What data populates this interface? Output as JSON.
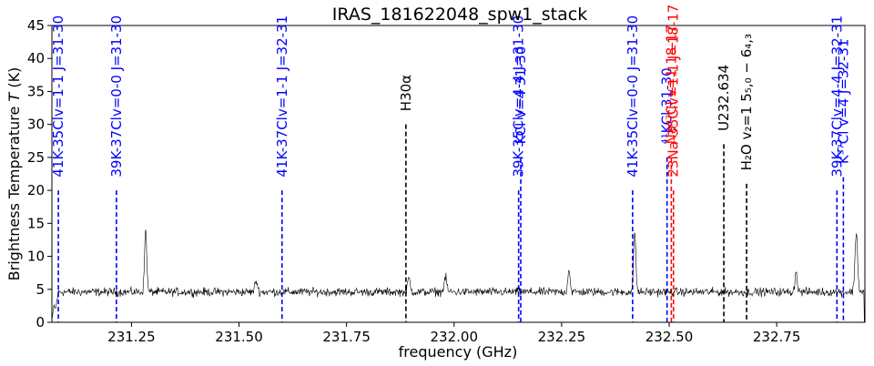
{
  "chart_data": {
    "type": "line",
    "title": "IRAS_181622048_spw1_stack",
    "xlabel": "frequency (GHz)",
    "ylabel": "Brightness Temperature",
    "ylabel_symbol": "T",
    "ylabel_unit": "(K)",
    "xlim": [
      231.065,
      232.955
    ],
    "ylim": [
      0,
      45
    ],
    "x_ticks": [
      231.25,
      231.5,
      231.75,
      232.0,
      232.25,
      232.5,
      232.75
    ],
    "x_tick_labels": [
      "231.25",
      "231.50",
      "231.75",
      "232.00",
      "232.25",
      "232.50",
      "232.75"
    ],
    "y_ticks": [
      0,
      5,
      10,
      15,
      20,
      25,
      30,
      35,
      40,
      45
    ],
    "y_tick_labels": [
      "0",
      "5",
      "10",
      "15",
      "20",
      "25",
      "30",
      "35",
      "40",
      "45"
    ],
    "grid": false,
    "baseline": 4.6,
    "noise": 0.45,
    "spectral_features": [
      {
        "freq": 231.073,
        "peak": 2.0,
        "width": 0.003
      },
      {
        "freq": 231.283,
        "peak": 14.3,
        "width": 0.0025
      },
      {
        "freq": 231.54,
        "peak": 6.3,
        "width": 0.003
      },
      {
        "freq": 231.895,
        "peak": 6.7,
        "width": 0.003
      },
      {
        "freq": 231.98,
        "peak": 6.8,
        "width": 0.003
      },
      {
        "freq": 232.267,
        "peak": 8.2,
        "width": 0.0025
      },
      {
        "freq": 232.42,
        "peak": 14.0,
        "width": 0.0025
      },
      {
        "freq": 232.795,
        "peak": 7.8,
        "width": 0.0025
      },
      {
        "freq": 232.935,
        "peak": 13.6,
        "width": 0.003
      }
    ],
    "line_markers": [
      {
        "freq": 231.08,
        "label": "41K-35Clv=1-1 J=31-30",
        "color": "#0000ff",
        "y_top": 20,
        "label_y": 22
      },
      {
        "freq": 231.215,
        "label": "39K-37Clv=0-0 J=31-30",
        "color": "#0000ff",
        "y_top": 20,
        "label_y": 22
      },
      {
        "freq": 231.6,
        "label": "41K-37Clv=1-1 J=32-31",
        "color": "#0000ff",
        "y_top": 20,
        "label_y": 22
      },
      {
        "freq": 231.888,
        "label": "H30α",
        "color": "#000000",
        "y_top": 30,
        "label_y": 32
      },
      {
        "freq": 232.15,
        "label": "39K-35Clv=4-4 J=31-30",
        "color": "#0000ff",
        "y_top": 20,
        "label_y": 22
      },
      {
        "freq": 232.155,
        "label": "KCl v=4 31-30",
        "color": "#0000ff",
        "y_top": 25,
        "label_y": 27
      },
      {
        "freq": 232.415,
        "label": "41K-35Clv=0-0 J=31-30",
        "color": "#0000ff",
        "y_top": 20,
        "label_y": 22
      },
      {
        "freq": 232.495,
        "label": "⁴¹KCl 31-30",
        "color": "#0000ff",
        "y_top": 25,
        "label_y": 27
      },
      {
        "freq": 232.505,
        "label": "Na³⁷Cl v=1 18-17",
        "color": "#ff0000",
        "y_top": 25,
        "label_y": 27
      },
      {
        "freq": 232.51,
        "label": "23Na-35Clv=1-1 J=18-17",
        "color": "#ff0000",
        "y_top": 20,
        "label_y": 22
      },
      {
        "freq": 232.627,
        "label": "U232.634",
        "color": "#000000",
        "y_top": 27,
        "label_y": 29
      },
      {
        "freq": 232.68,
        "label": "H₂O v₂=1 5₅,₀ − 6₄,₃",
        "color": "#000000",
        "y_top": 21,
        "label_y": 23
      },
      {
        "freq": 232.89,
        "label": "39K-37Clv=4-4 J=32-31",
        "color": "#0000ff",
        "y_top": 20,
        "label_y": 22
      },
      {
        "freq": 232.905,
        "label": "K³⁷Cl v=4 J=32-31",
        "color": "#0000ff",
        "y_top": 22,
        "label_y": 24
      }
    ]
  }
}
